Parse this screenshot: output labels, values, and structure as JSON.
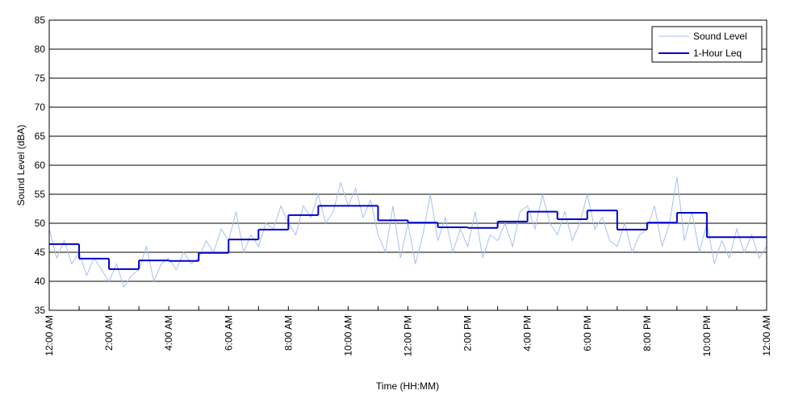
{
  "chart_data": {
    "type": "line",
    "x_label": "Time (HH:MM)",
    "y_label": "Sound Level (dBA)",
    "xlim": [
      0,
      24
    ],
    "ylim": [
      35,
      85
    ],
    "yticks": [
      35,
      40,
      45,
      50,
      55,
      60,
      65,
      70,
      75,
      80,
      85
    ],
    "xticks": [
      {
        "value": 0,
        "label": "12:00 AM"
      },
      {
        "value": 2,
        "label": "2:00 AM"
      },
      {
        "value": 4,
        "label": "4:00 AM"
      },
      {
        "value": 6,
        "label": "6:00 AM"
      },
      {
        "value": 8,
        "label": "8:00 AM"
      },
      {
        "value": 10,
        "label": "10:00 AM"
      },
      {
        "value": 12,
        "label": "12:00 PM"
      },
      {
        "value": 14,
        "label": "2:00 PM"
      },
      {
        "value": 16,
        "label": "4:00 PM"
      },
      {
        "value": 18,
        "label": "6:00 PM"
      },
      {
        "value": 20,
        "label": "8:00 PM"
      },
      {
        "value": 22,
        "label": "10:00 PM"
      },
      {
        "value": 24,
        "label": "12:00 AM"
      }
    ],
    "xminorticks": [
      1,
      3,
      5,
      7,
      9,
      11,
      13,
      15,
      17,
      19,
      21,
      23
    ],
    "grid": true,
    "legend": "upper right",
    "series": [
      {
        "name": "Sound Level",
        "color": "#a8c0f0",
        "x": [
          0,
          0.25,
          0.5,
          0.75,
          1,
          1.25,
          1.5,
          1.75,
          2,
          2.25,
          2.5,
          2.75,
          3,
          3.25,
          3.5,
          3.75,
          4,
          4.25,
          4.5,
          4.75,
          5,
          5.25,
          5.5,
          5.75,
          6,
          6.25,
          6.5,
          6.75,
          7,
          7.25,
          7.5,
          7.75,
          8,
          8.25,
          8.5,
          8.75,
          9,
          9.25,
          9.5,
          9.75,
          10,
          10.25,
          10.5,
          10.75,
          11,
          11.25,
          11.5,
          11.75,
          12,
          12.25,
          12.5,
          12.75,
          13,
          13.25,
          13.5,
          13.75,
          14,
          14.25,
          14.5,
          14.75,
          15,
          15.25,
          15.5,
          15.75,
          16,
          16.25,
          16.5,
          16.75,
          17,
          17.25,
          17.5,
          17.75,
          18,
          18.25,
          18.5,
          18.75,
          19,
          19.25,
          19.5,
          19.75,
          20,
          20.25,
          20.5,
          20.75,
          21,
          21.25,
          21.5,
          21.75,
          22,
          22.25,
          22.5,
          22.75,
          23,
          23.25,
          23.5,
          23.75,
          24
        ],
        "values": [
          49,
          44,
          47,
          43,
          45,
          41,
          44,
          42,
          40,
          43,
          39,
          41,
          42,
          46,
          40,
          43,
          44,
          42,
          45,
          43,
          44,
          47,
          45,
          49,
          47,
          52,
          45,
          48,
          46,
          50,
          49,
          53,
          50,
          48,
          53,
          51,
          55,
          50,
          52,
          57,
          53,
          56,
          51,
          54,
          48,
          45,
          53,
          44,
          50,
          43,
          48,
          55,
          47,
          51,
          45,
          49,
          46,
          52,
          44,
          48,
          47,
          50,
          46,
          52,
          53,
          49,
          55,
          50,
          48,
          52,
          47,
          50,
          55,
          49,
          51,
          47,
          46,
          50,
          45,
          48,
          49,
          53,
          46,
          50,
          58,
          47,
          52,
          45,
          50,
          43,
          47,
          44,
          49,
          45,
          48,
          44,
          46
        ]
      },
      {
        "name": "1-Hour Leq",
        "color": "#0000cc",
        "step": "post",
        "x": [
          0,
          1,
          2,
          3,
          4,
          5,
          6,
          7,
          8,
          9,
          10,
          11,
          12,
          13,
          14,
          15,
          16,
          17,
          18,
          19,
          20,
          21,
          22,
          23
        ],
        "values": [
          46.4,
          43.9,
          42.1,
          43.6,
          43.5,
          44.9,
          47.2,
          48.9,
          51.4,
          53.0,
          53.0,
          50.5,
          50.1,
          49.3,
          49.2,
          50.3,
          52.0,
          50.7,
          52.2,
          48.9,
          50.1,
          51.8,
          47.6,
          47.6
        ]
      }
    ]
  }
}
